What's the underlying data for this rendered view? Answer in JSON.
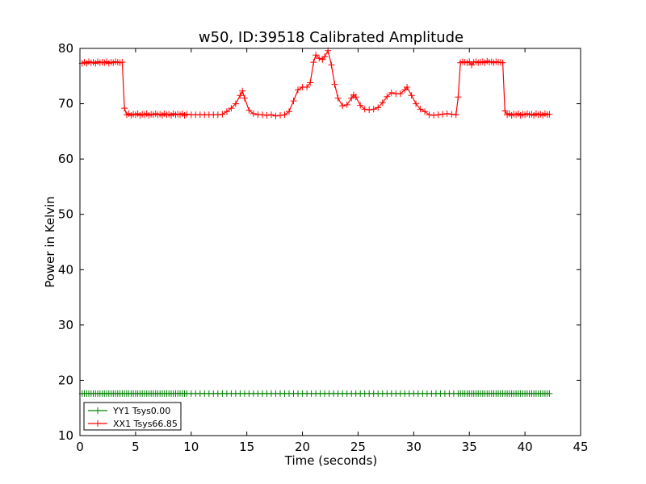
{
  "chart_data": {
    "type": "line",
    "title": "w50, ID:39518 Calibrated Amplitude",
    "xlabel": "Time (seconds)",
    "ylabel": "Power in Kelvin",
    "xlim": [
      0,
      45
    ],
    "ylim": [
      10,
      80
    ],
    "xticks": [
      0,
      5,
      10,
      15,
      20,
      25,
      30,
      35,
      40,
      45
    ],
    "yticks": [
      10,
      20,
      30,
      40,
      50,
      60,
      70,
      80
    ],
    "grid": false,
    "legend_position": "lower-left",
    "series": [
      {
        "name": "YY1 Tsys0.00",
        "color": "#008000",
        "marker": "plus",
        "segments": [
          {
            "x_start": 0.2,
            "x_end": 9.6,
            "step": 0.2,
            "y": 17.6
          },
          {
            "x_start": 10.0,
            "x_end": 33.6,
            "step": 0.4,
            "y": 17.6
          },
          {
            "x_start": 34.0,
            "x_end": 42.2,
            "step": 0.2,
            "y": 17.6
          }
        ]
      },
      {
        "name": "XX1 Tsys66.85",
        "color": "#ff0000",
        "marker": "plus",
        "points": [
          [
            0.2,
            77.3
          ],
          [
            0.4,
            77.5
          ],
          [
            0.6,
            77.3
          ],
          [
            0.8,
            77.6
          ],
          [
            1.0,
            77.4
          ],
          [
            1.2,
            77.5
          ],
          [
            1.4,
            77.3
          ],
          [
            1.6,
            77.6
          ],
          [
            1.8,
            77.4
          ],
          [
            2.0,
            77.5
          ],
          [
            2.2,
            77.4
          ],
          [
            2.4,
            77.6
          ],
          [
            2.6,
            77.3
          ],
          [
            2.8,
            77.5
          ],
          [
            3.0,
            77.4
          ],
          [
            3.2,
            77.6
          ],
          [
            3.4,
            77.5
          ],
          [
            3.6,
            77.4
          ],
          [
            3.8,
            77.5
          ],
          [
            4.0,
            69.2
          ],
          [
            4.2,
            68.0
          ],
          [
            4.4,
            68.2
          ],
          [
            4.6,
            67.9
          ],
          [
            4.8,
            68.1
          ],
          [
            5.0,
            68.0
          ],
          [
            5.2,
            68.2
          ],
          [
            5.4,
            67.9
          ],
          [
            5.6,
            68.1
          ],
          [
            5.8,
            68.0
          ],
          [
            6.0,
            68.2
          ],
          [
            6.2,
            67.9
          ],
          [
            6.4,
            68.1
          ],
          [
            6.6,
            68.0
          ],
          [
            6.8,
            68.2
          ],
          [
            7.0,
            68.0
          ],
          [
            7.2,
            68.1
          ],
          [
            7.4,
            67.9
          ],
          [
            7.6,
            68.2
          ],
          [
            7.8,
            68.0
          ],
          [
            8.0,
            68.1
          ],
          [
            8.2,
            67.9
          ],
          [
            8.4,
            68.2
          ],
          [
            8.6,
            68.0
          ],
          [
            8.8,
            68.1
          ],
          [
            9.0,
            68.0
          ],
          [
            9.2,
            68.2
          ],
          [
            9.4,
            67.9
          ],
          [
            9.6,
            68.1
          ],
          [
            10.0,
            68.0
          ],
          [
            10.4,
            68.0
          ],
          [
            10.8,
            68.0
          ],
          [
            11.2,
            68.0
          ],
          [
            11.6,
            68.0
          ],
          [
            12.0,
            68.0
          ],
          [
            12.4,
            68.0
          ],
          [
            12.8,
            68.1
          ],
          [
            13.2,
            68.6
          ],
          [
            13.6,
            69.2
          ],
          [
            14.0,
            70.0
          ],
          [
            14.4,
            71.5
          ],
          [
            14.6,
            72.3
          ],
          [
            14.8,
            71.0
          ],
          [
            15.2,
            68.8
          ],
          [
            15.6,
            68.2
          ],
          [
            16.0,
            68.0
          ],
          [
            16.4,
            68.0
          ],
          [
            16.8,
            67.9
          ],
          [
            17.2,
            68.0
          ],
          [
            17.6,
            67.8
          ],
          [
            18.0,
            67.9
          ],
          [
            18.4,
            68.0
          ],
          [
            18.8,
            68.6
          ],
          [
            19.2,
            70.5
          ],
          [
            19.6,
            72.5
          ],
          [
            20.0,
            73.0
          ],
          [
            20.4,
            73.0
          ],
          [
            20.7,
            73.8
          ],
          [
            21.0,
            77.5
          ],
          [
            21.2,
            78.8
          ],
          [
            21.5,
            78.2
          ],
          [
            21.8,
            78.0
          ],
          [
            22.0,
            78.5
          ],
          [
            22.3,
            79.6
          ],
          [
            22.6,
            77.0
          ],
          [
            22.9,
            73.5
          ],
          [
            23.2,
            71.0
          ],
          [
            23.6,
            69.6
          ],
          [
            24.0,
            69.8
          ],
          [
            24.4,
            71.0
          ],
          [
            24.6,
            71.6
          ],
          [
            24.8,
            71.2
          ],
          [
            25.2,
            69.7
          ],
          [
            25.6,
            69.0
          ],
          [
            26.0,
            68.9
          ],
          [
            26.4,
            69.0
          ],
          [
            26.8,
            69.3
          ],
          [
            27.2,
            70.2
          ],
          [
            27.6,
            71.3
          ],
          [
            28.0,
            72.0
          ],
          [
            28.4,
            71.8
          ],
          [
            28.8,
            71.8
          ],
          [
            29.2,
            72.5
          ],
          [
            29.4,
            73.0
          ],
          [
            29.8,
            71.5
          ],
          [
            30.2,
            70.0
          ],
          [
            30.6,
            69.0
          ],
          [
            31.0,
            68.6
          ],
          [
            31.4,
            68.0
          ],
          [
            31.8,
            67.9
          ],
          [
            32.2,
            68.0
          ],
          [
            32.6,
            68.1
          ],
          [
            33.0,
            68.2
          ],
          [
            33.4,
            68.1
          ],
          [
            33.8,
            68.0
          ],
          [
            34.0,
            71.2
          ],
          [
            34.2,
            77.4
          ],
          [
            34.4,
            77.6
          ],
          [
            34.6,
            77.5
          ],
          [
            34.8,
            77.4
          ],
          [
            35.0,
            77.6
          ],
          [
            35.2,
            77.0
          ],
          [
            35.4,
            77.5
          ],
          [
            35.6,
            77.6
          ],
          [
            35.8,
            77.4
          ],
          [
            36.0,
            77.5
          ],
          [
            36.2,
            77.6
          ],
          [
            36.4,
            77.4
          ],
          [
            36.6,
            77.7
          ],
          [
            36.8,
            77.5
          ],
          [
            37.0,
            77.6
          ],
          [
            37.2,
            77.4
          ],
          [
            37.4,
            77.6
          ],
          [
            37.6,
            77.5
          ],
          [
            37.8,
            77.5
          ],
          [
            38.0,
            77.4
          ],
          [
            38.2,
            68.7
          ],
          [
            38.4,
            68.0
          ],
          [
            38.6,
            68.2
          ],
          [
            38.8,
            67.9
          ],
          [
            39.0,
            68.1
          ],
          [
            39.2,
            68.0
          ],
          [
            39.4,
            68.2
          ],
          [
            39.6,
            67.9
          ],
          [
            39.8,
            68.1
          ],
          [
            40.0,
            68.0
          ],
          [
            40.2,
            68.2
          ],
          [
            40.4,
            68.0
          ],
          [
            40.6,
            68.1
          ],
          [
            40.8,
            67.9
          ],
          [
            41.0,
            68.2
          ],
          [
            41.2,
            68.0
          ],
          [
            41.4,
            68.1
          ],
          [
            41.6,
            67.9
          ],
          [
            41.8,
            68.2
          ],
          [
            42.0,
            68.0
          ],
          [
            42.2,
            68.1
          ]
        ]
      }
    ]
  }
}
